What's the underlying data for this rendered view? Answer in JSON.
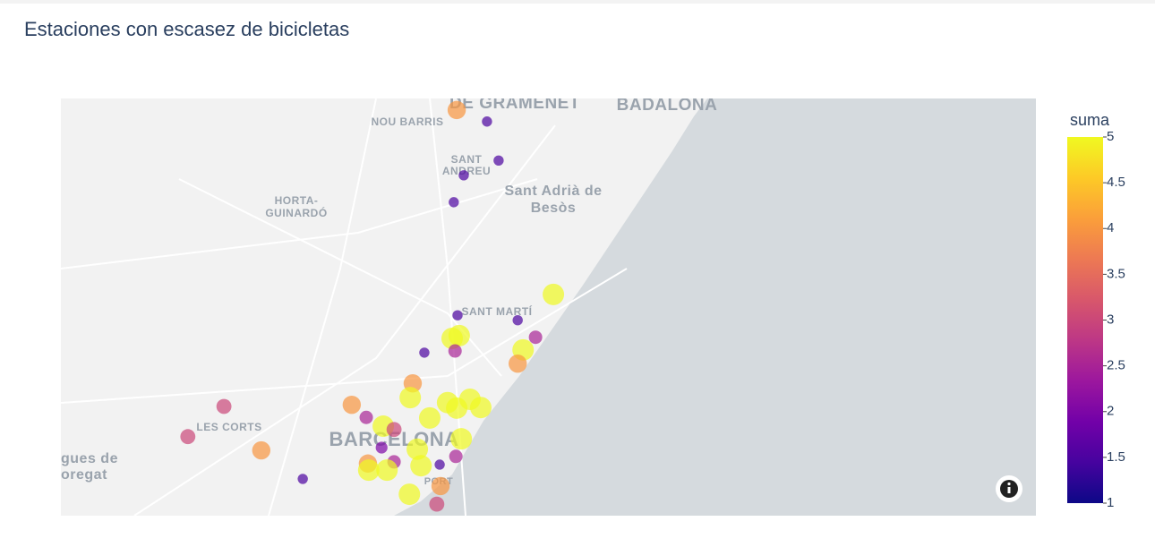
{
  "chart_data": {
    "type": "scatter_map",
    "title": "Estaciones con escasez de bicicletas",
    "xlim": [
      2.09,
      2.325
    ],
    "ylim": [
      41.373,
      41.449
    ],
    "x": [
      2.1854,
      2.1927,
      2.1955,
      2.1871,
      2.1847,
      2.2087,
      2.1856,
      2.2001,
      2.2044,
      2.1843,
      2.186,
      2.185,
      2.1776,
      2.2014,
      2.2001,
      2.1748,
      2.1601,
      2.1293,
      2.1742,
      2.1832,
      2.1886,
      2.1912,
      2.1854,
      2.1789,
      2.1636,
      2.1677,
      2.1703,
      2.1206,
      2.1383,
      2.1865,
      2.1759,
      2.1673,
      2.1852,
      2.164,
      2.1703,
      2.1686,
      2.1768,
      2.1813,
      2.1483,
      2.1815,
      2.174,
      2.1806,
      2.1642
    ],
    "y": [
      41.4469,
      41.4448,
      41.4377,
      41.435,
      41.4301,
      41.4133,
      41.4095,
      41.4086,
      41.4055,
      41.4053,
      41.4058,
      41.403,
      41.4027,
      41.4032,
      41.4007,
      41.3971,
      41.3932,
      41.3929,
      41.3945,
      41.3936,
      41.3942,
      41.3927,
      41.3926,
      41.3908,
      41.3909,
      41.3893,
      41.3887,
      41.3874,
      41.3849,
      41.387,
      41.3851,
      41.3854,
      41.3838,
      41.3825,
      41.3828,
      41.3813,
      41.3821,
      41.3823,
      41.3797,
      41.3784,
      41.3769,
      41.3751,
      41.3813
    ],
    "values": [
      4,
      1.5,
      1.5,
      1.5,
      1.5,
      5,
      1.5,
      1.5,
      2.5,
      5,
      5,
      2.5,
      1.5,
      5,
      4,
      4,
      4,
      3,
      5,
      5,
      5,
      5,
      5,
      5,
      2.5,
      5,
      3,
      3,
      4,
      5,
      5,
      2,
      2.5,
      4,
      2.5,
      5,
      5,
      1.5,
      1.5,
      4,
      5,
      3,
      5
    ],
    "colorbar_title": "suma",
    "clim": [
      1,
      5
    ],
    "cticks": [
      1,
      1.5,
      2,
      2.5,
      3,
      3.5,
      4,
      4.5,
      5
    ],
    "colorscale": [
      "#0d0887",
      "#46039f",
      "#7201a8",
      "#9c179e",
      "#bd3786",
      "#d8576b",
      "#ed7953",
      "#fb9f3a",
      "#fdca26",
      "#f0f921"
    ],
    "place_labels": [
      "DE GRAMENET",
      "BADALONA",
      "NOU BARRIS",
      "SANT",
      "ANDREU",
      "HORTA-",
      "GUINARDÓ",
      "Sant Adrià de",
      "Besòs",
      "SANT MARTÍ",
      "LES CORTS",
      "BARCELONA",
      "gues de",
      "oregat",
      "PORT"
    ]
  }
}
